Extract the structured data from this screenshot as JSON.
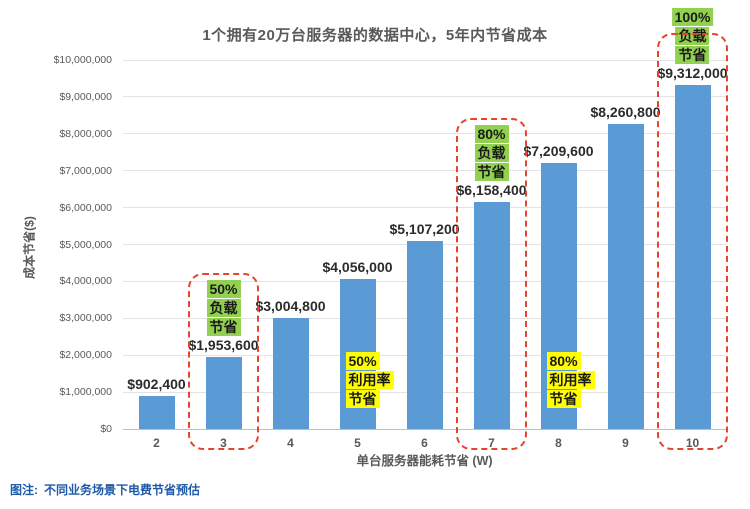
{
  "note": {
    "prefix": "图注:",
    "text": "不同业务场景下电费节省预估"
  },
  "colors": {
    "bar": "#5B9BD5",
    "gridline": "#E3E3E3",
    "axis_line": "#BFBFBF",
    "dashed_box_red": "#E8432C",
    "green_highlight": "#92D050",
    "yellow_highlight": "#FFFF00",
    "note_blue": "#1F5AA8",
    "axis_text": "#595959"
  },
  "chart_data": {
    "type": "bar",
    "title": "1个拥有20万台服务器的数据中心，5年内节省成本",
    "xlabel": "单台服务器能耗节省 (W)",
    "ylabel": "成本节省($)",
    "categories": [
      "2",
      "3",
      "4",
      "5",
      "6",
      "7",
      "8",
      "9",
      "10"
    ],
    "values": [
      902400,
      1953600,
      3004800,
      4056000,
      5107200,
      6158400,
      7209600,
      8260800,
      9312000
    ],
    "data_labels": [
      "$902,400",
      "$1,953,600",
      "$3,004,800",
      "$4,056,000",
      "$5,107,200",
      "$6,158,400",
      "$7,209,600",
      "$8,260,800",
      "$9,312,000"
    ],
    "ylim": [
      0,
      10000000
    ],
    "ytick_step": 1000000,
    "ytick_labels": [
      "$0",
      "$1,000,000",
      "$2,000,000",
      "$3,000,000",
      "$4,000,000",
      "$5,000,000",
      "$6,000,000",
      "$7,000,000",
      "$8,000,000",
      "$9,000,000",
      "$10,000,000"
    ],
    "grid": true,
    "legend": false,
    "annotations": [
      {
        "category": "3",
        "lines": [
          "50%",
          "负载",
          "节省"
        ],
        "style": "green",
        "boxed": true
      },
      {
        "category": "5",
        "lines": [
          "50%",
          "利用率",
          "节省"
        ],
        "style": "yellow",
        "boxed": false
      },
      {
        "category": "7",
        "lines": [
          "80%",
          "负载",
          "节省"
        ],
        "style": "green",
        "boxed": true
      },
      {
        "category": "8",
        "lines": [
          "80%",
          "利用率",
          "节省"
        ],
        "style": "yellow",
        "boxed": false
      },
      {
        "category": "10",
        "lines": [
          "100%",
          "负载",
          "节省"
        ],
        "style": "green",
        "boxed": true
      }
    ]
  }
}
